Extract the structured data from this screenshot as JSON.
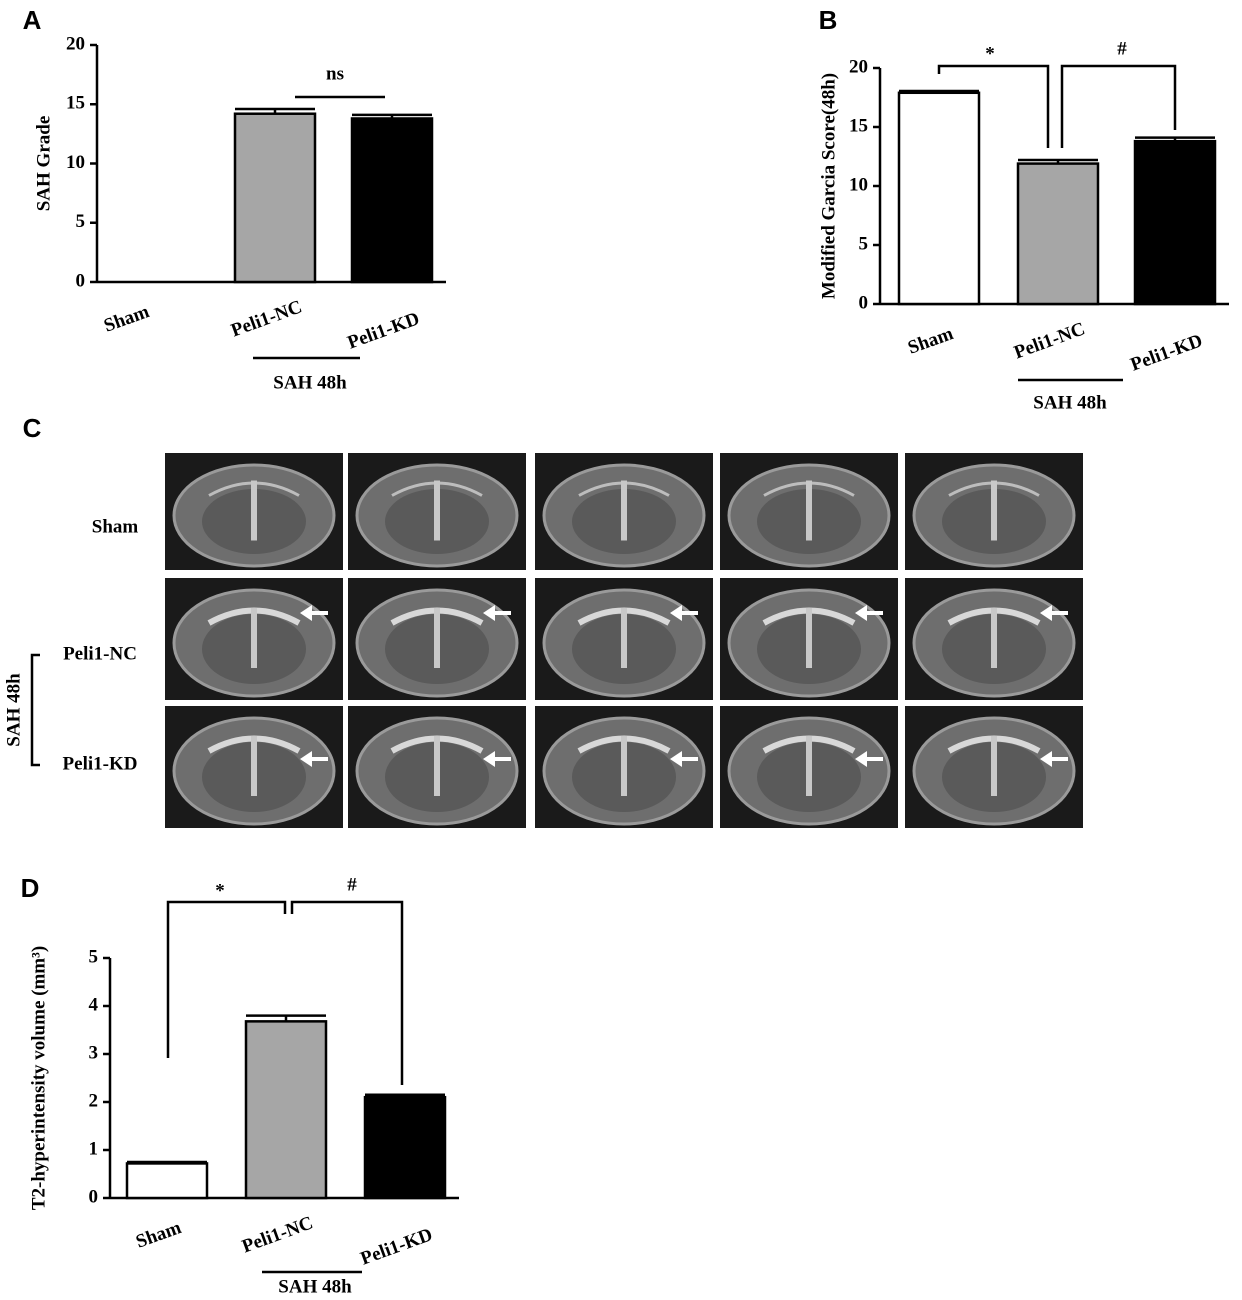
{
  "chart_data": [
    {
      "type": "bar",
      "panel": "A",
      "y_label": "SAH Grade",
      "categories": [
        "Sham",
        "Peli1-NC",
        "Peli1-KD"
      ],
      "values": [
        0,
        14.2,
        13.8
      ],
      "errors": [
        0,
        0.4,
        0.3
      ],
      "colors": [
        "#ffffff",
        "#a6a6a6",
        "#000000"
      ],
      "ylim": [
        0,
        20
      ],
      "yticks": [
        0,
        5,
        10,
        15,
        20
      ],
      "group_label": "SAH 48h",
      "annotations": [
        "ns"
      ]
    },
    {
      "type": "bar",
      "panel": "B",
      "y_label": "Modified Garcia Score(48h)",
      "categories": [
        "Sham",
        "Peli1-NC",
        "Peli1-KD"
      ],
      "values": [
        17.9,
        11.9,
        13.8
      ],
      "errors": [
        0.15,
        0.3,
        0.3
      ],
      "colors": [
        "#ffffff",
        "#a6a6a6",
        "#000000"
      ],
      "ylim": [
        0,
        20
      ],
      "yticks": [
        0,
        5,
        10,
        15,
        20
      ],
      "group_label": "SAH 48h",
      "annotations": [
        "*",
        "#"
      ]
    },
    {
      "type": "bar",
      "panel": "D",
      "y_label": "T2-hyperintensity volume (mm³)",
      "categories": [
        "Sham",
        "Peli1-NC",
        "Peli1-KD"
      ],
      "values": [
        0.72,
        3.68,
        2.1
      ],
      "errors": [
        0.03,
        0.12,
        0.05
      ],
      "colors": [
        "#ffffff",
        "#a6a6a6",
        "#000000"
      ],
      "ylim": [
        0,
        5
      ],
      "yticks": [
        0,
        1,
        2,
        3,
        4,
        5
      ],
      "group_label": "SAH 48h",
      "annotations": [
        "*",
        "#"
      ]
    }
  ],
  "mri_panel": {
    "panel": "C",
    "rows": [
      "Sham",
      "Peli1-NC",
      "Peli1-KD"
    ],
    "group_label": "SAH 48h"
  }
}
